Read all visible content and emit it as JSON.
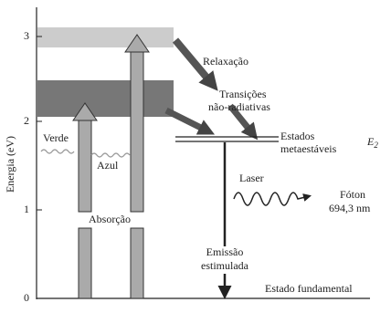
{
  "axis": {
    "label": "Energia (eV)",
    "ticks": [
      "0",
      "1",
      "2",
      "3"
    ]
  },
  "labels": {
    "relaxation": "Relaxação",
    "transitions": [
      "Transições",
      "não-radiativas"
    ],
    "metastable": [
      "Estados",
      "metaestáveis"
    ],
    "level": {
      "symbol": "E",
      "subscript": "2"
    },
    "green": "Verde",
    "blue": "Azul",
    "absorption": "Absorção",
    "laser": "Laser",
    "photon": [
      "Fóton",
      "694,3 nm"
    ],
    "emission": [
      "Emissão",
      "estimulada"
    ],
    "ground": "Estado fundamental"
  }
}
